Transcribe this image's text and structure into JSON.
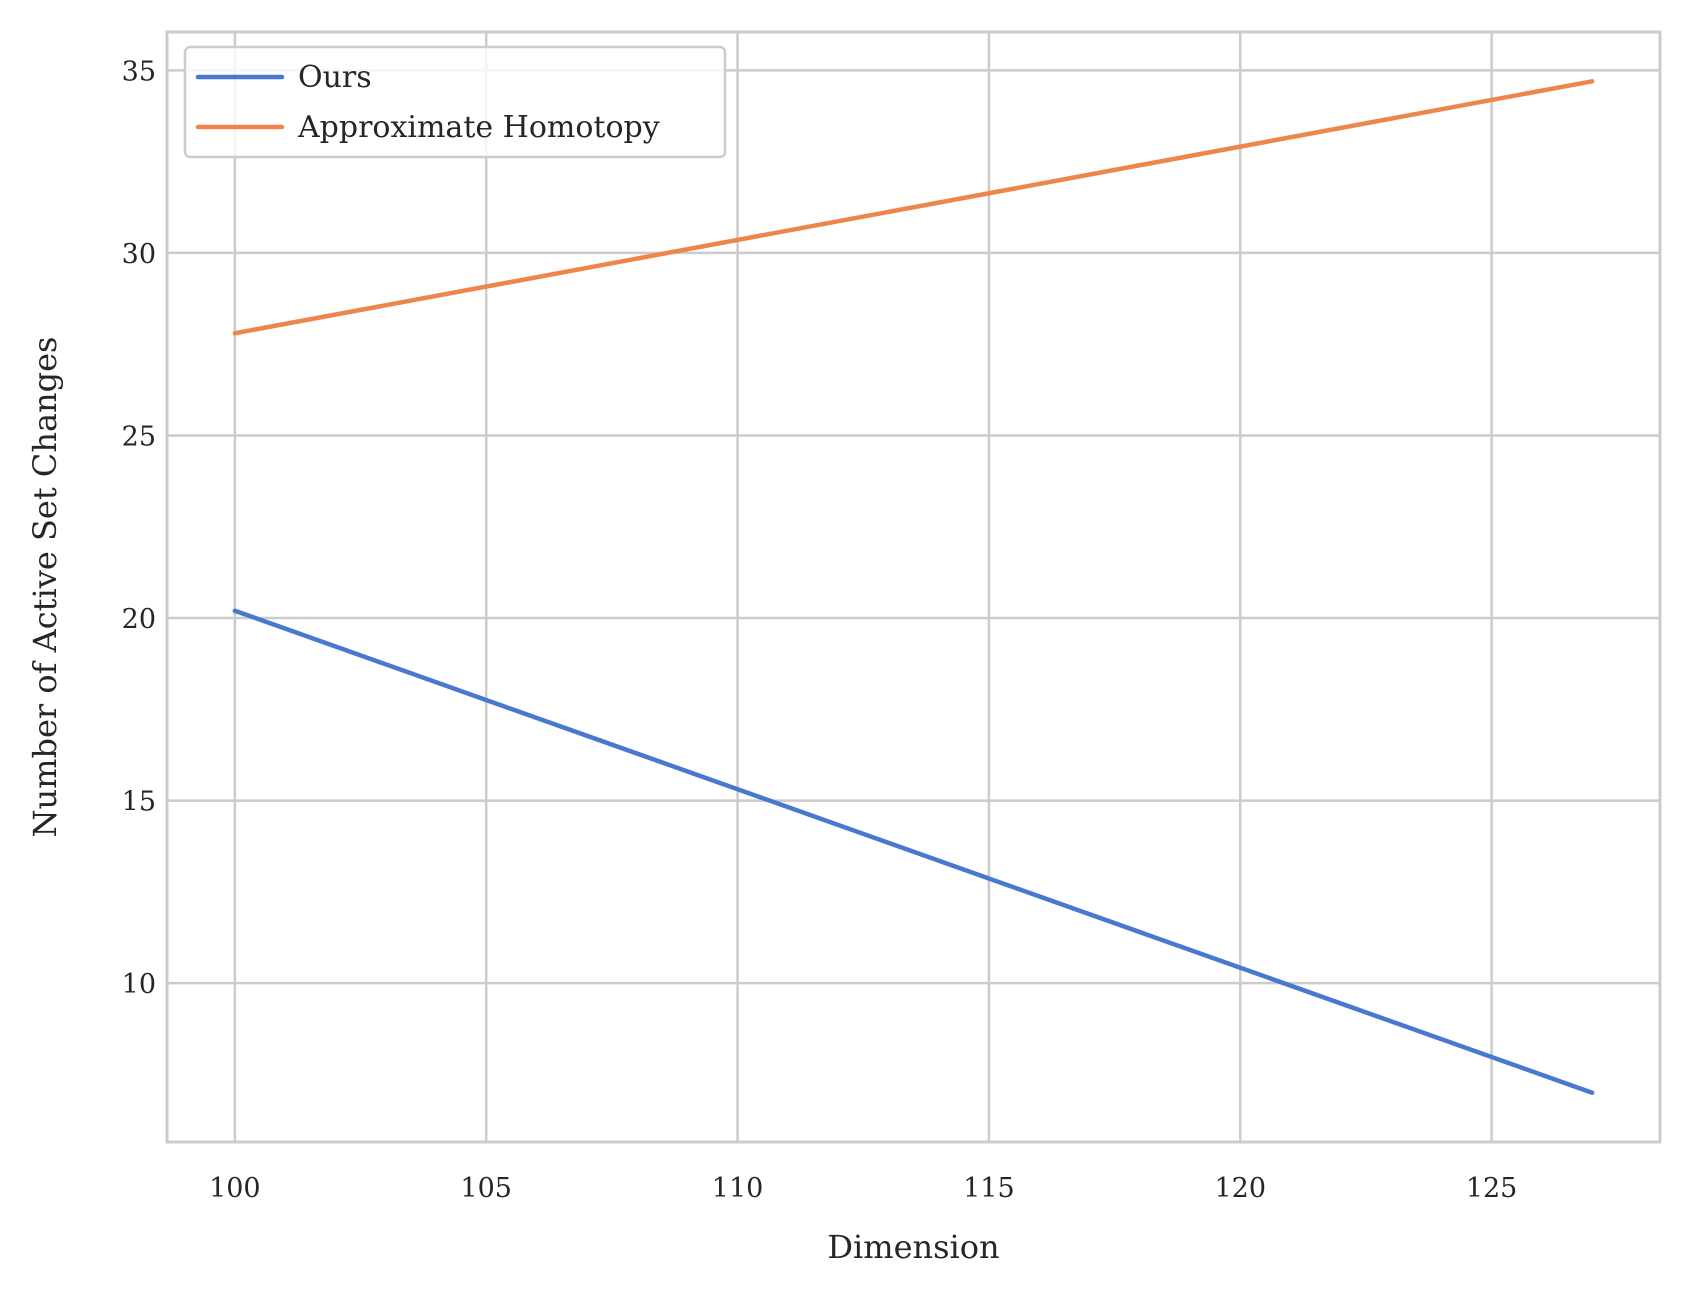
{
  "chart_data": {
    "type": "line",
    "title": "",
    "xlabel": "Dimension",
    "ylabel": "Number of Active Set Changes",
    "xlim": [
      98.65,
      128.35
    ],
    "ylim": [
      5.65,
      36.05
    ],
    "xticks": [
      100,
      105,
      110,
      115,
      120,
      125
    ],
    "yticks": [
      10,
      15,
      20,
      25,
      30,
      35
    ],
    "grid": true,
    "legend_position": "top-left",
    "series": [
      {
        "name": "Ours",
        "color": "#4878d0",
        "x": [
          100,
          127
        ],
        "y": [
          20.2,
          7.0
        ]
      },
      {
        "name": "Approximate Homotopy",
        "color": "#ee854a",
        "x": [
          100,
          127
        ],
        "y": [
          27.8,
          34.7
        ]
      }
    ]
  }
}
